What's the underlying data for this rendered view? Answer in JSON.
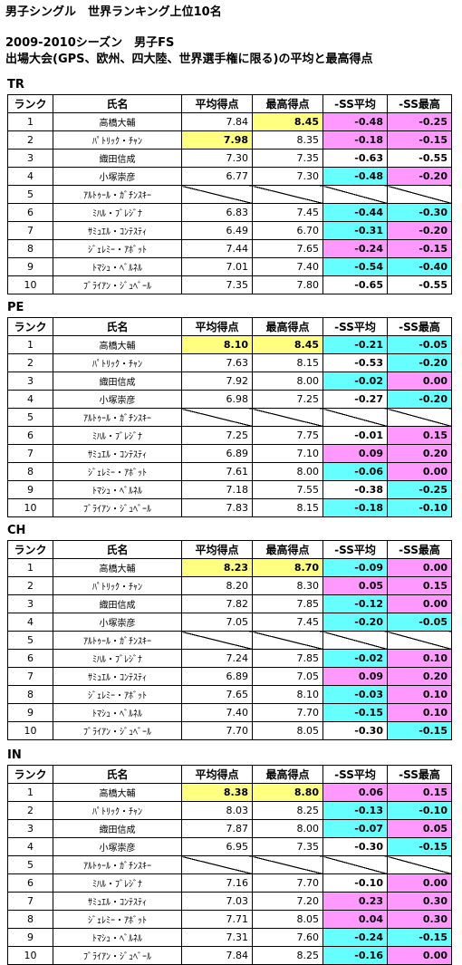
{
  "header": {
    "line1": "男子シングル　世界ランキング上位10名",
    "line2": "2009-2010シーズン　男子FS",
    "line3": "出場大会(GPS、欧州、四大陸、世界選手権に限る)の平均と最高得点"
  },
  "columns": [
    "ランク",
    "氏名",
    "平均得点",
    "最高得点",
    "-SS平均",
    "-SS最高"
  ],
  "colors": {
    "yellow": "#ffff80",
    "pink": "#ff99ff",
    "cyan": "#66ffff"
  },
  "sections": [
    {
      "label": "TR",
      "rows": [
        {
          "rank": "1",
          "name": "高橋大輔",
          "avg": "7.84",
          "max": "8.45",
          "ssavg": "-0.48",
          "ssmax": "-0.25",
          "hl": [
            "n",
            "y",
            "p",
            "p"
          ]
        },
        {
          "rank": "2",
          "name": "ﾊﾟﾄﾘｯｸ・ﾁｬﾝ",
          "avg": "7.98",
          "max": "8.35",
          "ssavg": "-0.18",
          "ssmax": "-0.15",
          "hl": [
            "y",
            "n",
            "p",
            "p"
          ]
        },
        {
          "rank": "3",
          "name": "織田信成",
          "avg": "7.30",
          "max": "7.35",
          "ssavg": "-0.63",
          "ssmax": "-0.55",
          "hl": [
            "n",
            "n",
            "n",
            "n"
          ]
        },
        {
          "rank": "4",
          "name": "小塚崇彦",
          "avg": "6.77",
          "max": "7.30",
          "ssavg": "-0.48",
          "ssmax": "-0.20",
          "hl": [
            "n",
            "n",
            "c",
            "p"
          ]
        },
        {
          "rank": "5",
          "name": "ｱﾙﾄｩｰﾙ・ｶﾞﾁﾝｽｷｰ",
          "avg": "",
          "max": "",
          "ssavg": "",
          "ssmax": "",
          "hl": [
            "n",
            "n",
            "n",
            "n"
          ],
          "blank": true
        },
        {
          "rank": "6",
          "name": "ﾐﾊﾙ・ﾌﾞﾚｼﾞﾅ",
          "avg": "6.83",
          "max": "7.45",
          "ssavg": "-0.44",
          "ssmax": "-0.30",
          "hl": [
            "n",
            "n",
            "c",
            "c"
          ]
        },
        {
          "rank": "7",
          "name": "ｻﾐｭｴﾙ・ｺﾝﾃｽﾃｨ",
          "avg": "6.49",
          "max": "6.70",
          "ssavg": "-0.31",
          "ssmax": "-0.20",
          "hl": [
            "n",
            "n",
            "c",
            "p"
          ]
        },
        {
          "rank": "8",
          "name": "ｼﾞｪﾚﾐｰ・ｱﾎﾞｯﾄ",
          "avg": "7.44",
          "max": "7.65",
          "ssavg": "-0.24",
          "ssmax": "-0.15",
          "hl": [
            "n",
            "n",
            "p",
            "p"
          ]
        },
        {
          "rank": "9",
          "name": "ﾄﾏｼｭ・ﾍﾞﾙﾈﾙ",
          "avg": "7.01",
          "max": "7.40",
          "ssavg": "-0.54",
          "ssmax": "-0.40",
          "hl": [
            "n",
            "n",
            "c",
            "c"
          ]
        },
        {
          "rank": "10",
          "name": "ﾌﾞﾗｲｱﾝ・ｼﾞｭﾍﾞｰﾙ",
          "avg": "7.35",
          "max": "7.80",
          "ssavg": "-0.65",
          "ssmax": "-0.55",
          "hl": [
            "n",
            "n",
            "n",
            "n"
          ]
        }
      ]
    },
    {
      "label": "PE",
      "rows": [
        {
          "rank": "1",
          "name": "高橋大輔",
          "avg": "8.10",
          "max": "8.45",
          "ssavg": "-0.21",
          "ssmax": "-0.05",
          "hl": [
            "y",
            "y",
            "c",
            "c"
          ]
        },
        {
          "rank": "2",
          "name": "ﾊﾟﾄﾘｯｸ・ﾁｬﾝ",
          "avg": "7.63",
          "max": "8.15",
          "ssavg": "-0.53",
          "ssmax": "-0.20",
          "hl": [
            "n",
            "n",
            "n",
            "c"
          ]
        },
        {
          "rank": "3",
          "name": "織田信成",
          "avg": "7.92",
          "max": "8.00",
          "ssavg": "-0.02",
          "ssmax": "0.00",
          "hl": [
            "n",
            "n",
            "c",
            "p"
          ]
        },
        {
          "rank": "4",
          "name": "小塚崇彦",
          "avg": "6.98",
          "max": "7.25",
          "ssavg": "-0.27",
          "ssmax": "-0.20",
          "hl": [
            "n",
            "n",
            "n",
            "c"
          ]
        },
        {
          "rank": "5",
          "name": "ｱﾙﾄｩｰﾙ・ｶﾞﾁﾝｽｷｰ",
          "avg": "",
          "max": "",
          "ssavg": "",
          "ssmax": "",
          "hl": [
            "n",
            "n",
            "n",
            "n"
          ],
          "blank": true
        },
        {
          "rank": "6",
          "name": "ﾐﾊﾙ・ﾌﾞﾚｼﾞﾅ",
          "avg": "7.25",
          "max": "7.75",
          "ssavg": "-0.01",
          "ssmax": "0.15",
          "hl": [
            "n",
            "n",
            "n",
            "p"
          ]
        },
        {
          "rank": "7",
          "name": "ｻﾐｭｴﾙ・ｺﾝﾃｽﾃｨ",
          "avg": "6.89",
          "max": "7.10",
          "ssavg": "0.09",
          "ssmax": "0.20",
          "hl": [
            "n",
            "n",
            "p",
            "p"
          ]
        },
        {
          "rank": "8",
          "name": "ｼﾞｪﾚﾐｰ・ｱﾎﾞｯﾄ",
          "avg": "7.61",
          "max": "8.00",
          "ssavg": "-0.06",
          "ssmax": "0.00",
          "hl": [
            "n",
            "n",
            "c",
            "p"
          ]
        },
        {
          "rank": "9",
          "name": "ﾄﾏｼｭ・ﾍﾞﾙﾈﾙ",
          "avg": "7.18",
          "max": "7.55",
          "ssavg": "-0.38",
          "ssmax": "-0.25",
          "hl": [
            "n",
            "n",
            "n",
            "c"
          ]
        },
        {
          "rank": "10",
          "name": "ﾌﾞﾗｲｱﾝ・ｼﾞｭﾍﾞｰﾙ",
          "avg": "7.83",
          "max": "8.15",
          "ssavg": "-0.18",
          "ssmax": "-0.10",
          "hl": [
            "n",
            "n",
            "c",
            "c"
          ]
        }
      ]
    },
    {
      "label": "CH",
      "rows": [
        {
          "rank": "1",
          "name": "高橋大輔",
          "avg": "8.23",
          "max": "8.70",
          "ssavg": "-0.09",
          "ssmax": "0.00",
          "hl": [
            "y",
            "y",
            "c",
            "p"
          ]
        },
        {
          "rank": "2",
          "name": "ﾊﾟﾄﾘｯｸ・ﾁｬﾝ",
          "avg": "8.20",
          "max": "8.30",
          "ssavg": "0.05",
          "ssmax": "0.15",
          "hl": [
            "n",
            "n",
            "p",
            "p"
          ]
        },
        {
          "rank": "3",
          "name": "織田信成",
          "avg": "7.82",
          "max": "7.85",
          "ssavg": "-0.12",
          "ssmax": "0.00",
          "hl": [
            "n",
            "n",
            "c",
            "p"
          ]
        },
        {
          "rank": "4",
          "name": "小塚崇彦",
          "avg": "7.05",
          "max": "7.45",
          "ssavg": "-0.20",
          "ssmax": "-0.05",
          "hl": [
            "n",
            "n",
            "c",
            "c"
          ]
        },
        {
          "rank": "5",
          "name": "ｱﾙﾄｩｰﾙ・ｶﾞﾁﾝｽｷｰ",
          "avg": "",
          "max": "",
          "ssavg": "",
          "ssmax": "",
          "hl": [
            "n",
            "n",
            "n",
            "n"
          ],
          "blank": true
        },
        {
          "rank": "6",
          "name": "ﾐﾊﾙ・ﾌﾞﾚｼﾞﾅ",
          "avg": "7.24",
          "max": "7.85",
          "ssavg": "-0.02",
          "ssmax": "0.10",
          "hl": [
            "n",
            "n",
            "c",
            "p"
          ]
        },
        {
          "rank": "7",
          "name": "ｻﾐｭｴﾙ・ｺﾝﾃｽﾃｨ",
          "avg": "6.89",
          "max": "7.05",
          "ssavg": "0.09",
          "ssmax": "0.20",
          "hl": [
            "n",
            "n",
            "p",
            "p"
          ]
        },
        {
          "rank": "8",
          "name": "ｼﾞｪﾚﾐｰ・ｱﾎﾞｯﾄ",
          "avg": "7.65",
          "max": "8.10",
          "ssavg": "-0.03",
          "ssmax": "0.10",
          "hl": [
            "n",
            "n",
            "c",
            "p"
          ]
        },
        {
          "rank": "9",
          "name": "ﾄﾏｼｭ・ﾍﾞﾙﾈﾙ",
          "avg": "7.40",
          "max": "7.70",
          "ssavg": "-0.15",
          "ssmax": "0.10",
          "hl": [
            "n",
            "n",
            "c",
            "p"
          ]
        },
        {
          "rank": "10",
          "name": "ﾌﾞﾗｲｱﾝ・ｼﾞｭﾍﾞｰﾙ",
          "avg": "7.70",
          "max": "8.05",
          "ssavg": "-0.30",
          "ssmax": "-0.15",
          "hl": [
            "n",
            "n",
            "n",
            "c"
          ]
        }
      ]
    },
    {
      "label": "IN",
      "rows": [
        {
          "rank": "1",
          "name": "高橋大輔",
          "avg": "8.38",
          "max": "8.80",
          "ssavg": "0.06",
          "ssmax": "0.15",
          "hl": [
            "y",
            "y",
            "p",
            "p"
          ]
        },
        {
          "rank": "2",
          "name": "ﾊﾟﾄﾘｯｸ・ﾁｬﾝ",
          "avg": "8.03",
          "max": "8.25",
          "ssavg": "-0.13",
          "ssmax": "-0.10",
          "hl": [
            "n",
            "n",
            "c",
            "c"
          ]
        },
        {
          "rank": "3",
          "name": "織田信成",
          "avg": "7.87",
          "max": "8.00",
          "ssavg": "-0.07",
          "ssmax": "0.05",
          "hl": [
            "n",
            "n",
            "c",
            "p"
          ]
        },
        {
          "rank": "4",
          "name": "小塚崇彦",
          "avg": "6.95",
          "max": "7.35",
          "ssavg": "-0.30",
          "ssmax": "-0.15",
          "hl": [
            "n",
            "n",
            "n",
            "c"
          ]
        },
        {
          "rank": "5",
          "name": "ｱﾙﾄｩｰﾙ・ｶﾞﾁﾝｽｷｰ",
          "avg": "",
          "max": "",
          "ssavg": "",
          "ssmax": "",
          "hl": [
            "n",
            "n",
            "n",
            "n"
          ],
          "blank": true
        },
        {
          "rank": "6",
          "name": "ﾐﾊﾙ・ﾌﾞﾚｼﾞﾅ",
          "avg": "7.16",
          "max": "7.70",
          "ssavg": "-0.10",
          "ssmax": "0.00",
          "hl": [
            "n",
            "n",
            "n",
            "p"
          ]
        },
        {
          "rank": "7",
          "name": "ｻﾐｭｴﾙ・ｺﾝﾃｽﾃｨ",
          "avg": "7.03",
          "max": "7.20",
          "ssavg": "0.23",
          "ssmax": "0.30",
          "hl": [
            "n",
            "n",
            "p",
            "p"
          ]
        },
        {
          "rank": "8",
          "name": "ｼﾞｪﾚﾐｰ・ｱﾎﾞｯﾄ",
          "avg": "7.71",
          "max": "8.05",
          "ssavg": "0.04",
          "ssmax": "0.30",
          "hl": [
            "n",
            "n",
            "p",
            "p"
          ]
        },
        {
          "rank": "9",
          "name": "ﾄﾏｼｭ・ﾍﾞﾙﾈﾙ",
          "avg": "7.31",
          "max": "7.60",
          "ssavg": "-0.24",
          "ssmax": "-0.15",
          "hl": [
            "n",
            "n",
            "c",
            "c"
          ]
        },
        {
          "rank": "10",
          "name": "ﾌﾞﾗｲｱﾝ・ｼﾞｭﾍﾞｰﾙ",
          "avg": "7.84",
          "max": "8.25",
          "ssavg": "-0.16",
          "ssmax": "0.00",
          "hl": [
            "n",
            "n",
            "c",
            "p"
          ]
        }
      ]
    }
  ]
}
